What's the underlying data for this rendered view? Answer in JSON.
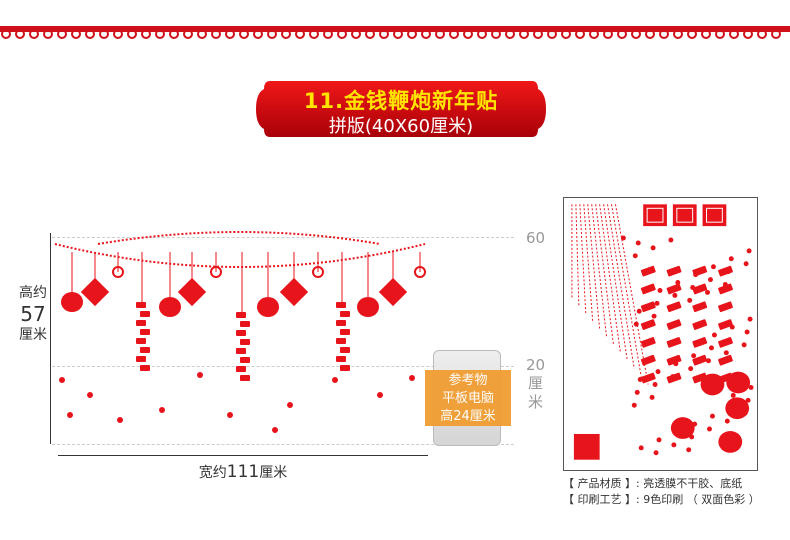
{
  "banner": {
    "title": "11.金钱鞭炮新年贴",
    "subtitle": "拼版(40X60厘米)"
  },
  "dimensions": {
    "height_prefix": "高约",
    "height_value": "57",
    "height_unit": "厘米",
    "width_prefix": "宽约",
    "width_value": "111",
    "width_unit": "厘米",
    "scale_top": "60",
    "scale_mid": "20",
    "scale_unit": "厘米"
  },
  "reference": {
    "line1": "参考物",
    "line2": "平板电脑",
    "line3": "高24厘米"
  },
  "info": {
    "material_label": "【 产品材质 】:",
    "material_value": "亮透膜不干胶、底纸",
    "print_label": "【 印刷工艺 】:",
    "print_value": "9色印刷 （ 双面色彩 ）"
  },
  "colors": {
    "primary_red": "#e8141b",
    "banner_red": "#c8000a",
    "title_yellow": "#ffe400",
    "ref_orange": "#f19b2c"
  }
}
